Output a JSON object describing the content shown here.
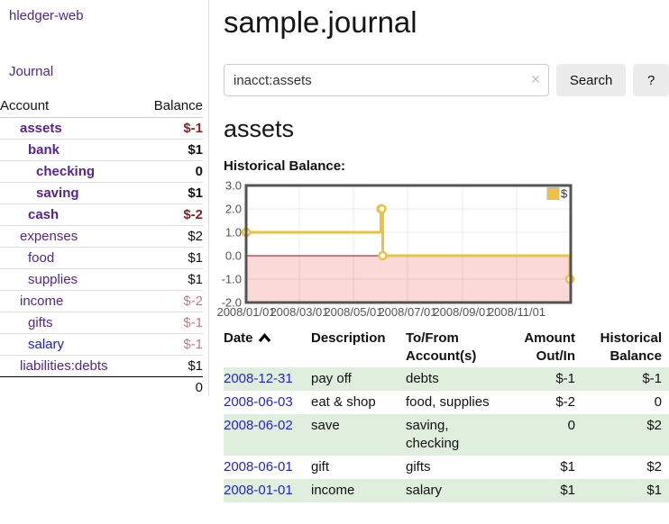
{
  "app": {
    "title": "hledger-web"
  },
  "colors": {
    "link_purple": "#54258f",
    "link_blue": "#1a1ad6",
    "negative_strong": "#961c1c",
    "negative_soft": "#c47e7e",
    "row_stripe_green": "#e0eedd",
    "button_gray": "#ececec",
    "series_gold": "#edc240"
  },
  "sidebar": {
    "journal_link": "Journal",
    "table": {
      "account_header": "Account",
      "balance_header": "Balance",
      "accounts": [
        {
          "name": "assets",
          "level": 1,
          "bold": true,
          "balance": "$-1",
          "balance_style": "negstrong"
        },
        {
          "name": "bank",
          "level": 2,
          "bold": true,
          "balance": "$1",
          "balance_style": "normal"
        },
        {
          "name": "checking",
          "level": 3,
          "bold": true,
          "balance": "0",
          "balance_style": "normal"
        },
        {
          "name": "saving",
          "level": 3,
          "bold": true,
          "balance": "$1",
          "balance_style": "normal"
        },
        {
          "name": "cash",
          "level": 2,
          "bold": true,
          "balance": "$-2",
          "balance_style": "negstrong"
        },
        {
          "name": "expenses",
          "level": 1,
          "bold": false,
          "balance": "$2",
          "balance_style": "normal"
        },
        {
          "name": "food",
          "level": 2,
          "bold": false,
          "balance": "$1",
          "balance_style": "normal"
        },
        {
          "name": "supplies",
          "level": 2,
          "bold": false,
          "balance": "$1",
          "balance_style": "normal"
        },
        {
          "name": "income",
          "level": 1,
          "bold": false,
          "balance": "$-2",
          "balance_style": "negsoft"
        },
        {
          "name": "gifts",
          "level": 2,
          "bold": false,
          "balance": "$-1",
          "balance_style": "negsoft"
        },
        {
          "name": "salary",
          "level": 2,
          "bold": false,
          "balance": "$-1",
          "balance_style": "negsoft",
          "link_color": "blue"
        },
        {
          "name": "liabilities:debts",
          "level": 1,
          "bold": false,
          "balance": "$1",
          "balance_style": "normal"
        }
      ],
      "total": "0"
    }
  },
  "header": {
    "title": "sample.journal"
  },
  "search": {
    "value": "inacct:assets",
    "clear_icon": "✕",
    "button_label": "Search",
    "help_label": "?"
  },
  "account_page": {
    "title": "assets",
    "chart_label": "Historical Balance:"
  },
  "chart_data": {
    "type": "line",
    "step": true,
    "title": "Historical Balance:",
    "series": [
      {
        "name": "$",
        "color": "#edc240",
        "points": [
          [
            "2008-01-01",
            1
          ],
          [
            "2008-06-01",
            2
          ],
          [
            "2008-06-02",
            2
          ],
          [
            "2008-06-03",
            0
          ],
          [
            "2008-12-31",
            -1
          ]
        ]
      }
    ],
    "x_range": [
      "2008-01-01",
      "2009-01-01"
    ],
    "x_ticks": [
      {
        "t": "2008-01-01",
        "label": "2008/01/01"
      },
      {
        "t": "2008-03-01",
        "label": "2008/03/01"
      },
      {
        "t": "2008-05-01",
        "label": "2008/05/01"
      },
      {
        "t": "2008-07-01",
        "label": "2008/07/01"
      },
      {
        "t": "2008-09-01",
        "label": "2008/09/01"
      },
      {
        "t": "2008-11-01",
        "label": "2008/11/01"
      }
    ],
    "y_ticks": [
      3.0,
      2.0,
      1.0,
      0.0,
      -1.0,
      -2.0
    ],
    "ylim": [
      -2,
      3
    ],
    "grid": true,
    "legend_position": "top-right",
    "negative_region_fill": "#fcd9d9",
    "zero_line_color": "#8f1010",
    "border_color": "#545454",
    "axis_text_color": "#545454"
  },
  "register": {
    "headers": {
      "date": "Date",
      "description": "Description",
      "accounts": "To/From Account(s)",
      "amount": "Amount Out/In",
      "balance": "Historical Balance"
    },
    "sort": {
      "column": "date",
      "direction": "asc"
    },
    "rows": [
      {
        "date": "2008-12-31",
        "description": "pay off",
        "accounts": "debts",
        "amount": "$-1",
        "amount_negative": true,
        "balance": "$-1",
        "balance_negative": true
      },
      {
        "date": "2008-06-03",
        "description": "eat & shop",
        "accounts": "food, supplies",
        "amount": "$-2",
        "amount_negative": true,
        "balance": "0",
        "balance_negative": false
      },
      {
        "date": "2008-06-02",
        "description": "save",
        "accounts": "saving, checking",
        "amount": "0",
        "amount_negative": false,
        "balance": "$2",
        "balance_negative": false
      },
      {
        "date": "2008-06-01",
        "description": "gift",
        "accounts": "gifts",
        "amount": "$1",
        "amount_negative": false,
        "balance": "$2",
        "balance_negative": false
      },
      {
        "date": "2008-01-01",
        "description": "income",
        "accounts": "salary",
        "amount": "$1",
        "amount_negative": false,
        "balance": "$1",
        "balance_negative": false
      }
    ]
  }
}
